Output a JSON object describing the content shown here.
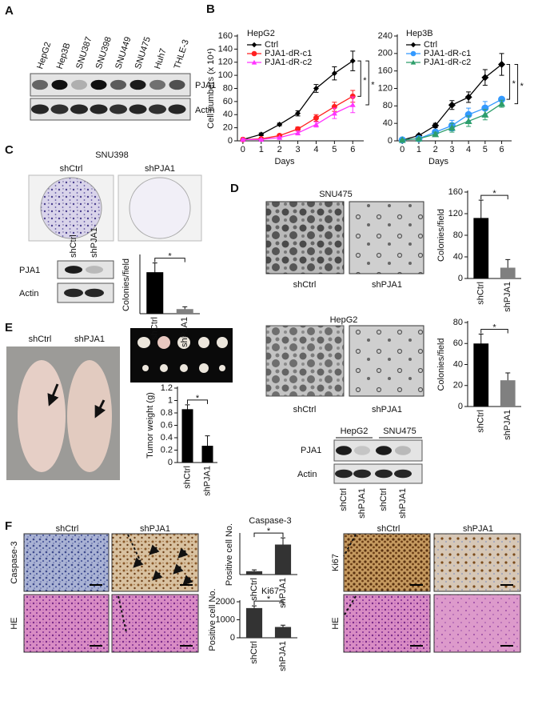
{
  "panel_a": {
    "label": "A",
    "cell_lines": [
      "HepG2",
      "Hep3B",
      "SNU387",
      "SNU398",
      "SNU449",
      "SNU475",
      "Huh7",
      "THLE-3"
    ],
    "blot_labels": [
      "PJA1",
      "Actin"
    ]
  },
  "panel_b": {
    "label": "B"
  },
  "panel_c": {
    "label": "C",
    "title": "SNU398",
    "plate_labels": [
      "shCtrl",
      "shPJA1"
    ],
    "blot_lanes": [
      "shCtrl",
      "shPJA1"
    ],
    "blot_labels": [
      "PJA1",
      "Actin"
    ]
  },
  "panel_d": {
    "label": "D",
    "groups": [
      {
        "title": "SNU475",
        "image_labels": [
          "shCtrl",
          "shPJA1"
        ]
      },
      {
        "title": "HepG2",
        "image_labels": [
          "shCtrl",
          "shPJA1"
        ]
      }
    ],
    "blot_groups": [
      "HepG2",
      "SNU475"
    ],
    "blot_labels": [
      "PJA1",
      "Actin"
    ],
    "blot_lanes": [
      "shCtrl",
      "shPJA1",
      "shCtrl",
      "shPJA1"
    ]
  },
  "panel_e": {
    "label": "E",
    "mouse_labels": [
      "shCtrl",
      "shPJA1"
    ]
  },
  "panel_f": {
    "label": "F",
    "left_columns": [
      "shCtrl",
      "shPJA1"
    ],
    "left_rows": [
      "Caspase-3",
      "HE"
    ],
    "right_columns": [
      "shCtrl",
      "shPJA1"
    ],
    "right_rows": [
      "Ki67",
      "HE"
    ]
  },
  "chart_data": [
    {
      "type": "line",
      "title": "HepG2",
      "y_label": "Cell numbers (x 10⁴)",
      "x_label": "Days",
      "x": [
        0,
        1,
        2,
        3,
        4,
        5,
        6
      ],
      "xlim": [
        -0.3,
        6.6
      ],
      "xticks": [
        0,
        1,
        2,
        3,
        4,
        5,
        6
      ],
      "ylim": [
        0,
        160
      ],
      "yticks": [
        0,
        20,
        40,
        60,
        80,
        100,
        120,
        140,
        160
      ],
      "legend": "upper left",
      "series": [
        {
          "name": "Ctrl",
          "color": "#000000",
          "marker": "diamond",
          "values": [
            2,
            10,
            25,
            42,
            80,
            103,
            122
          ],
          "errors": [
            1,
            2,
            2,
            4,
            6,
            10,
            15
          ]
        },
        {
          "name": "PJA1-dR-c1",
          "color": "#ff2020",
          "marker": "circle",
          "values": [
            2,
            3,
            8,
            18,
            35,
            52,
            68
          ],
          "errors": [
            1,
            1,
            2,
            3,
            5,
            7,
            9
          ]
        },
        {
          "name": "PJA1-dR-c2",
          "color": "#ff33ff",
          "marker": "triangle",
          "values": [
            2,
            2,
            5,
            12,
            25,
            42,
            55
          ],
          "errors": [
            1,
            1,
            1,
            3,
            4,
            8,
            12
          ]
        }
      ],
      "annotations": [
        "*",
        "*"
      ]
    },
    {
      "type": "line",
      "title": "Hep3B",
      "x_label": "Days",
      "x": [
        0,
        1,
        2,
        3,
        4,
        5,
        6
      ],
      "xlim": [
        -0.3,
        6.6
      ],
      "xticks": [
        0,
        1,
        2,
        3,
        4,
        5,
        6
      ],
      "ylim": [
        0,
        240
      ],
      "yticks": [
        0,
        40,
        80,
        120,
        160,
        200,
        240
      ],
      "legend": "upper left",
      "series": [
        {
          "name": "Ctrl",
          "color": "#000000",
          "marker": "diamond",
          "values": [
            2,
            12,
            35,
            82,
            100,
            145,
            175
          ],
          "errors": [
            1,
            3,
            5,
            10,
            12,
            18,
            25
          ]
        },
        {
          "name": "PJA1-dR-c1",
          "color": "#3399ff",
          "marker": "circle",
          "values": [
            2,
            5,
            20,
            35,
            60,
            75,
            95
          ],
          "errors": [
            1,
            2,
            5,
            12,
            15,
            15,
            5
          ]
        },
        {
          "name": "PJA1-dR-c2",
          "color": "#2e9e6b",
          "marker": "triangle",
          "values": [
            2,
            5,
            15,
            30,
            45,
            60,
            85
          ],
          "errors": [
            1,
            2,
            5,
            10,
            12,
            12,
            8
          ]
        }
      ],
      "annotations": [
        "*",
        "*"
      ]
    },
    {
      "type": "bar",
      "y_label": "Colonies/field",
      "categories": [
        "shCtrl",
        "shPJA1"
      ],
      "values": [
        18,
        2
      ],
      "errors": [
        4,
        1
      ],
      "colors": [
        "#000000",
        "#808080"
      ],
      "ylim": [
        0,
        25
      ],
      "annotations": [
        "*"
      ]
    },
    {
      "type": "bar",
      "y_label": "Colonies/field",
      "categories": [
        "shCtrl",
        "shPJA1"
      ],
      "values": [
        112,
        20
      ],
      "errors": [
        33,
        15
      ],
      "colors": [
        "#000000",
        "#808080"
      ],
      "ylim": [
        0,
        160
      ],
      "yticks": [
        0,
        40,
        80,
        120,
        160
      ],
      "annotations": [
        "*"
      ]
    },
    {
      "type": "bar",
      "y_label": "Colonies/field",
      "categories": [
        "shCtrl",
        "shPJA1"
      ],
      "values": [
        60,
        25
      ],
      "errors": [
        9,
        7
      ],
      "colors": [
        "#000000",
        "#808080"
      ],
      "ylim": [
        0,
        80
      ],
      "yticks": [
        0,
        20,
        40,
        60,
        80
      ],
      "annotations": [
        "*"
      ]
    },
    {
      "type": "bar",
      "y_label": "Tumor weight (g)",
      "categories": [
        "shCtrl",
        "shPJA1"
      ],
      "values": [
        0.86,
        0.27
      ],
      "errors": [
        0.07,
        0.16
      ],
      "colors": [
        "#000000",
        "#000000"
      ],
      "ylim": [
        0,
        1.2
      ],
      "yticks": [
        0,
        0.2,
        0.4,
        0.6,
        0.8,
        1,
        1.2
      ],
      "annotations": [
        "*"
      ]
    },
    {
      "type": "bar",
      "title": "Caspase-3",
      "y_label": "Positive cell No.",
      "categories": [
        "shCtrl",
        "shPJA1"
      ],
      "values": [
        1,
        9
      ],
      "errors": [
        0.4,
        2
      ],
      "colors": [
        "#333333",
        "#333333"
      ],
      "ylim": [
        0,
        12
      ],
      "annotations": [
        "*"
      ]
    },
    {
      "type": "bar",
      "title": "Ki67",
      "y_label": "Positive cell No.",
      "categories": [
        "shCtrl",
        "shPJA1"
      ],
      "values": [
        1650,
        600
      ],
      "errors": [
        120,
        100
      ],
      "colors": [
        "#333333",
        "#333333"
      ],
      "ylim": [
        0,
        2000
      ],
      "yticks": [
        0,
        1000,
        2000
      ],
      "annotations": [
        "*"
      ]
    }
  ]
}
